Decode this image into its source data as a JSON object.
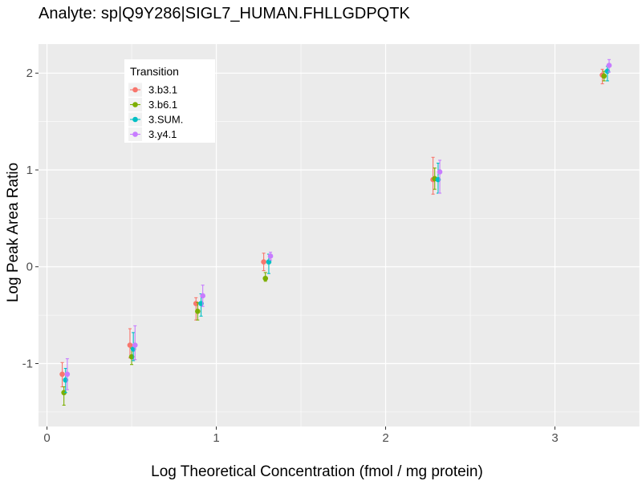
{
  "chart_data": {
    "type": "scatter",
    "title": "Analyte: sp|Q9Y286|SIGL7_HUMAN.FHLLGDPQTK",
    "xlabel": "Log Theoretical Concentration (fmol / mg protein)",
    "ylabel": "Log Peak Area Ratio",
    "xlim": [
      -0.05,
      3.5
    ],
    "ylim": [
      -1.65,
      2.3
    ],
    "x_ticks": [
      0,
      1,
      2,
      3
    ],
    "x_tick_labels": [
      "0",
      "1",
      "2",
      "3"
    ],
    "y_ticks": [
      -1,
      0,
      1,
      2
    ],
    "y_tick_labels": [
      "-1",
      "0",
      "1",
      "2"
    ],
    "grid": true,
    "legend": {
      "title": "Transition",
      "position": "top-left"
    },
    "series": [
      {
        "name": "3.b3.1",
        "color": "#F8766D",
        "points": [
          {
            "x": 0.09,
            "y": -1.11,
            "lo": -1.24,
            "hi": -0.99
          },
          {
            "x": 0.49,
            "y": -0.81,
            "lo": -0.94,
            "hi": -0.64
          },
          {
            "x": 0.88,
            "y": -0.38,
            "lo": -0.55,
            "hi": -0.32
          },
          {
            "x": 1.28,
            "y": 0.05,
            "lo": -0.04,
            "hi": 0.14
          },
          {
            "x": 2.28,
            "y": 0.9,
            "lo": 0.75,
            "hi": 1.13
          },
          {
            "x": 3.28,
            "y": 1.98,
            "lo": 1.89,
            "hi": 2.04
          }
        ]
      },
      {
        "name": "3.b6.1",
        "color": "#7CAE00",
        "points": [
          {
            "x": 0.1,
            "y": -1.3,
            "lo": -1.43,
            "hi": -1.24
          },
          {
            "x": 0.5,
            "y": -0.93,
            "lo": -1.01,
            "hi": -0.84
          },
          {
            "x": 0.89,
            "y": -0.46,
            "lo": -0.55,
            "hi": -0.37
          },
          {
            "x": 1.29,
            "y": -0.12,
            "lo": -0.15,
            "hi": -0.06
          },
          {
            "x": 2.29,
            "y": 0.91,
            "lo": 0.8,
            "hi": 1.02
          },
          {
            "x": 3.29,
            "y": 1.97,
            "lo": 1.92,
            "hi": 2.02
          }
        ]
      },
      {
        "name": "3.SUM.",
        "color": "#00BFC4",
        "points": [
          {
            "x": 0.11,
            "y": -1.17,
            "lo": -1.3,
            "hi": -1.05
          },
          {
            "x": 0.51,
            "y": -0.85,
            "lo": -0.97,
            "hi": -0.68
          },
          {
            "x": 0.91,
            "y": -0.38,
            "lo": -0.51,
            "hi": -0.28
          },
          {
            "x": 1.31,
            "y": 0.05,
            "lo": -0.07,
            "hi": 0.13
          },
          {
            "x": 2.31,
            "y": 0.9,
            "lo": 0.76,
            "hi": 1.07
          },
          {
            "x": 3.31,
            "y": 2.02,
            "lo": 1.92,
            "hi": 2.07
          }
        ]
      },
      {
        "name": "3.y4.1",
        "color": "#C77CFF",
        "points": [
          {
            "x": 0.12,
            "y": -1.11,
            "lo": -1.27,
            "hi": -0.95
          },
          {
            "x": 0.52,
            "y": -0.81,
            "lo": -0.96,
            "hi": -0.61
          },
          {
            "x": 0.92,
            "y": -0.3,
            "lo": -0.41,
            "hi": -0.19
          },
          {
            "x": 1.32,
            "y": 0.11,
            "lo": 0.07,
            "hi": 0.15
          },
          {
            "x": 2.32,
            "y": 0.98,
            "lo": 0.76,
            "hi": 1.1
          },
          {
            "x": 3.32,
            "y": 2.08,
            "lo": 2.01,
            "hi": 2.14
          }
        ]
      }
    ]
  }
}
